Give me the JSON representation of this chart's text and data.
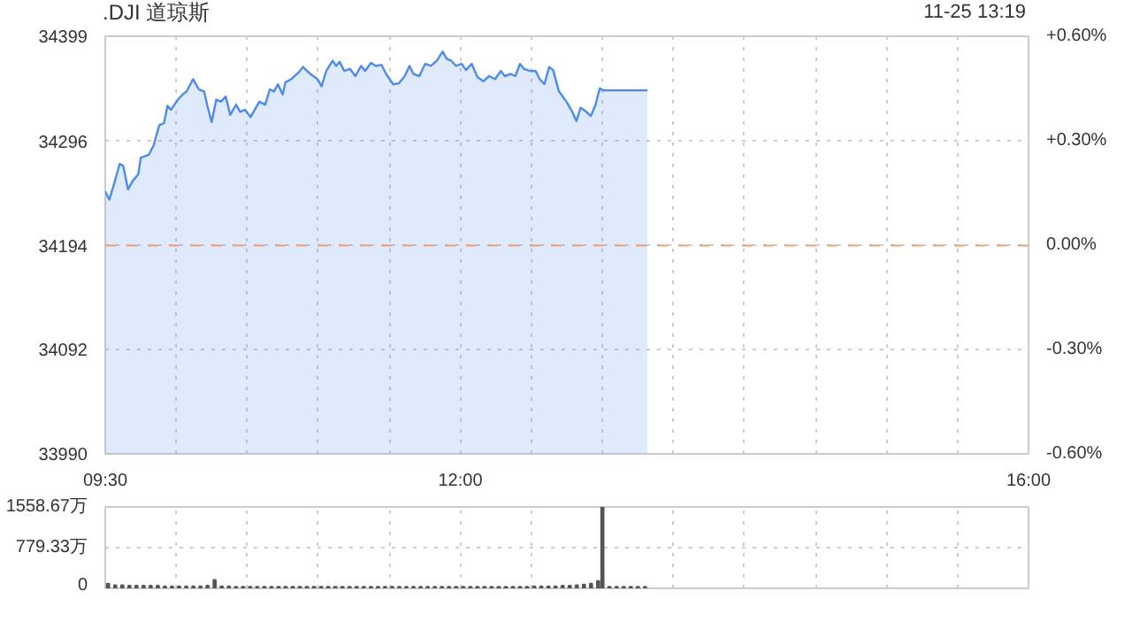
{
  "chart_data": [
    {
      "type": "area",
      "title": ".DJI 道琼斯",
      "annotations": [
        "11-25 13:19"
      ],
      "xlim": [
        9.5,
        16
      ],
      "ylim": [
        33990,
        34399
      ],
      "y2lim": [
        -0.6,
        0.6
      ],
      "grid": true,
      "xticks": [
        {
          "value": 9.5,
          "label": "09:30"
        },
        {
          "value": 10,
          "label": null
        },
        {
          "value": 10.5,
          "label": null
        },
        {
          "value": 11,
          "label": null
        },
        {
          "value": 11.5,
          "label": null
        },
        {
          "value": 12,
          "label": "12:00"
        },
        {
          "value": 12.5,
          "label": null
        },
        {
          "value": 13,
          "label": null
        },
        {
          "value": 13.5,
          "label": null
        },
        {
          "value": 14,
          "label": null
        },
        {
          "value": 14.5,
          "label": null
        },
        {
          "value": 15,
          "label": null
        },
        {
          "value": 15.5,
          "label": null
        },
        {
          "value": 16,
          "label": "16:00"
        }
      ],
      "yticks": [
        33990,
        34092,
        34194,
        34296,
        34399
      ],
      "y2ticks": [
        {
          "value": -0.6,
          "label": "-0.60%"
        },
        {
          "value": -0.3,
          "label": "-0.30%"
        },
        {
          "value": 0,
          "label": "0.00%"
        },
        {
          "value": 0.3,
          "label": "+0.30%"
        },
        {
          "value": 0.6,
          "label": "+0.60%"
        }
      ],
      "ref_lines": [
        {
          "axis": "y",
          "value": 34194,
          "color": "#f0a070",
          "line_style": "dashed"
        }
      ],
      "series": [
        {
          "color": "#4d8af0",
          "x": [
            9.5,
            9.529,
            9.561,
            9.602,
            9.627,
            9.66,
            9.692,
            9.733,
            9.75,
            9.807,
            9.84,
            9.881,
            9.914,
            9.938,
            9.963,
            10.012,
            10.045,
            10.073,
            10.118,
            10.159,
            10.196,
            10.217,
            10.249,
            10.282,
            10.315,
            10.348,
            10.38,
            10.421,
            10.45,
            10.483,
            10.524,
            10.544,
            10.585,
            10.626,
            10.659,
            10.688,
            10.716,
            10.749,
            10.769,
            10.81,
            10.864,
            10.892,
            10.921,
            10.954,
            10.995,
            11.023,
            11.056,
            11.101,
            11.126,
            11.15,
            11.183,
            11.224,
            11.261,
            11.302,
            11.33,
            11.371,
            11.404,
            11.445,
            11.478,
            11.527,
            11.568,
            11.609,
            11.642,
            11.67,
            11.711,
            11.752,
            11.793,
            11.834,
            11.875,
            11.904,
            11.937,
            11.969,
            12.01,
            12.039,
            12.08,
            12.121,
            12.162,
            12.203,
            12.244,
            12.285,
            12.313,
            12.354,
            12.387,
            12.42,
            12.448,
            12.489,
            12.53,
            12.559,
            12.592,
            12.625,
            12.653,
            12.694,
            12.747,
            12.788,
            12.817,
            12.846,
            12.878,
            12.919,
            12.952,
            12.981,
            13.009,
            13.317
          ],
          "values": [
            34247,
            34239,
            34254,
            34274,
            34272,
            34249,
            34257,
            34264,
            34280,
            34283,
            34292,
            34312,
            34314,
            34331,
            34327,
            34337,
            34342,
            34345,
            34357,
            34347,
            34345,
            34332,
            34315,
            34337,
            34335,
            34340,
            34322,
            34332,
            34325,
            34327,
            34320,
            34325,
            34335,
            34332,
            34347,
            34345,
            34352,
            34342,
            34354,
            34357,
            34364,
            34369,
            34365,
            34361,
            34357,
            34350,
            34365,
            34375,
            34370,
            34374,
            34365,
            34367,
            34360,
            34370,
            34365,
            34373,
            34370,
            34371,
            34362,
            34352,
            34353,
            34360,
            34370,
            34362,
            34360,
            34372,
            34370,
            34375,
            34384,
            34377,
            34375,
            34370,
            34372,
            34366,
            34372,
            34359,
            34355,
            34360,
            34357,
            34365,
            34360,
            34362,
            34360,
            34372,
            34367,
            34365,
            34365,
            34357,
            34352,
            34369,
            34366,
            34345,
            34335,
            34325,
            34316,
            34329,
            34326,
            34321,
            34332,
            34348,
            34346,
            34346
          ]
        }
      ]
    },
    {
      "type": "bar",
      "xlim": [
        9.5,
        16
      ],
      "ylim": [
        0,
        1558.67
      ],
      "grid": true,
      "tick_labels": "y",
      "xticks": [
        {
          "value": 9.5,
          "label": null
        },
        {
          "value": 10,
          "label": null
        },
        {
          "value": 10.5,
          "label": null
        },
        {
          "value": 11,
          "label": null
        },
        {
          "value": 11.5,
          "label": null
        },
        {
          "value": 12,
          "label": null
        },
        {
          "value": 12.5,
          "label": null
        },
        {
          "value": 13,
          "label": null
        },
        {
          "value": 13.5,
          "label": null
        },
        {
          "value": 14,
          "label": null
        },
        {
          "value": 14.5,
          "label": null
        },
        {
          "value": 15,
          "label": null
        },
        {
          "value": 15.5,
          "label": null
        },
        {
          "value": 16,
          "label": null
        }
      ],
      "yticks": [
        0,
        {
          "value": 779.33,
          "label": "779.33万"
        },
        {
          "value": 1558.67,
          "label": "1558.67万"
        }
      ],
      "series": [
        {
          "color": "#555555",
          "x": [
            9.52,
            9.57,
            9.62,
            9.67,
            9.72,
            9.77,
            9.82,
            9.87,
            9.92,
            9.97,
            10.02,
            10.07,
            10.12,
            10.17,
            10.22,
            10.27,
            10.32,
            10.37,
            10.42,
            10.47,
            10.52,
            10.57,
            10.62,
            10.67,
            10.72,
            10.77,
            10.82,
            10.87,
            10.92,
            10.97,
            11.02,
            11.07,
            11.12,
            11.17,
            11.22,
            11.27,
            11.32,
            11.37,
            11.42,
            11.47,
            11.52,
            11.57,
            11.62,
            11.67,
            11.72,
            11.77,
            11.82,
            11.87,
            11.92,
            11.97,
            12.02,
            12.07,
            12.12,
            12.17,
            12.22,
            12.27,
            12.32,
            12.37,
            12.42,
            12.47,
            12.52,
            12.57,
            12.62,
            12.67,
            12.72,
            12.77,
            12.82,
            12.87,
            12.92,
            12.97,
            13.0,
            13.05,
            13.1,
            13.15,
            13.2,
            13.25,
            13.3
          ],
          "values": [
            90,
            60,
            60,
            50,
            50,
            50,
            50,
            50,
            40,
            40,
            40,
            40,
            40,
            40,
            50,
            160,
            40,
            40,
            30,
            30,
            30,
            30,
            30,
            30,
            30,
            30,
            30,
            30,
            30,
            30,
            30,
            30,
            30,
            30,
            30,
            30,
            30,
            30,
            30,
            30,
            30,
            30,
            30,
            30,
            30,
            30,
            30,
            30,
            30,
            30,
            30,
            30,
            30,
            30,
            30,
            30,
            30,
            30,
            30,
            30,
            40,
            40,
            40,
            40,
            50,
            50,
            60,
            70,
            90,
            140,
            1558.67,
            30,
            30,
            30,
            30,
            30,
            30
          ]
        }
      ]
    }
  ]
}
